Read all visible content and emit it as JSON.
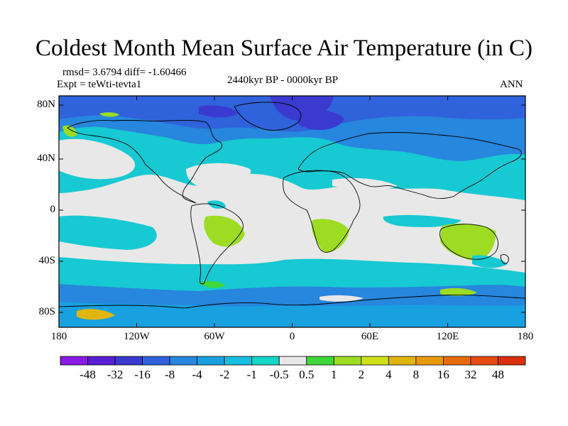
{
  "title": "Coldest Month Mean Surface Air Temperature (in C)",
  "stats": {
    "rmsd_diff": "rmsd= 3.6794 diff= -1.60466",
    "expt": "Expt = teWti-tevta1",
    "period": "2440kyr BP - 0000kyr BP",
    "season": "ANN"
  },
  "lat_ticks": [
    "80N",
    "40N",
    "0",
    "40S",
    "80S"
  ],
  "lon_ticks": [
    "180",
    "120W",
    "60W",
    "0",
    "60E",
    "120E",
    "180"
  ],
  "colorbar": {
    "labels": [
      "-48",
      "-32",
      "-16",
      "-8",
      "-4",
      "-2",
      "-1",
      "-0.5",
      "0.5",
      "1",
      "2",
      "4",
      "8",
      "16",
      "32",
      "48"
    ],
    "colors": [
      "#8a1ae6",
      "#5a1fd4",
      "#3a3ad0",
      "#2f62db",
      "#2786dd",
      "#18a0e0",
      "#17bfe0",
      "#16d6c6",
      "#e8e8e8",
      "#3fd83a",
      "#9ddc22",
      "#cfe019",
      "#e0b50e",
      "#e89a0a",
      "#e86a07",
      "#e84a10",
      "#d8300a"
    ]
  },
  "colors": {
    "land_outline": "#000000",
    "neutral": "#e8e8e8",
    "cool_band": "#17c9d2",
    "cold": "#2786dd",
    "very_cold": "#2f62db",
    "extreme_cold": "#3a3ad0",
    "warm": "#9ddc22"
  }
}
